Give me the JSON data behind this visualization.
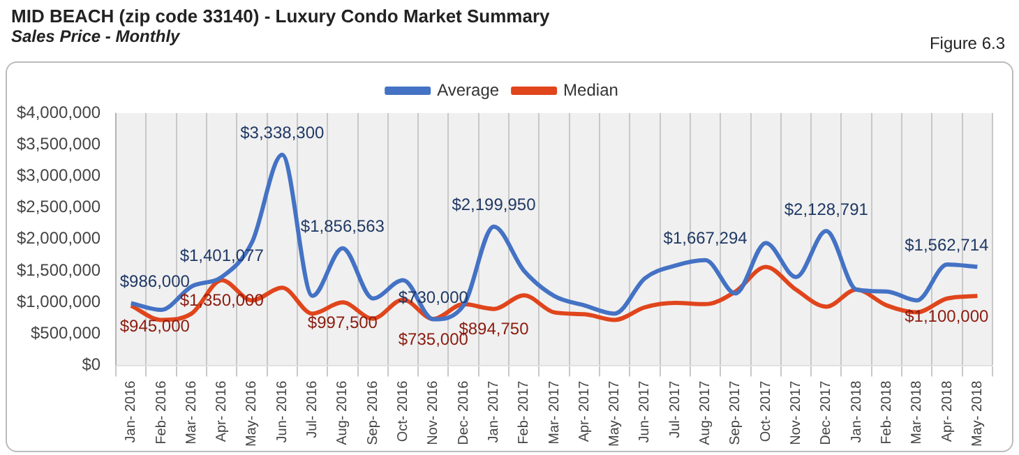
{
  "chart_data": {
    "type": "line",
    "title": "MID BEACH (zip code 33140) - Luxury Condo Market Summary",
    "subtitle": "Sales Price - Monthly",
    "annotations": [
      "Figure 6.3"
    ],
    "categories": [
      "Jan- 2016",
      "Feb- 2016",
      "Mar- 2016",
      "Apr- 2016",
      "May- 2016",
      "Jun- 2016",
      "Jul- 2016",
      "Aug- 2016",
      "Sep- 2016",
      "Oct- 2016",
      "Nov- 2016",
      "Dec- 2016",
      "Jan- 2017",
      "Feb- 2017",
      "Mar- 2017",
      "Apr- 2017",
      "May- 2017",
      "Jun- 2017",
      "Jul- 2017",
      "Aug- 2017",
      "Sep- 2017",
      "Oct- 2017",
      "Nov- 2017",
      "Dec- 2017",
      "Jan- 2018",
      "Feb- 2018",
      "Mar- 2018",
      "Apr- 2018",
      "May- 2018"
    ],
    "series": [
      {
        "name": "Average",
        "color": "#4472c4",
        "values": [
          986000,
          880000,
          1250000,
          1401077,
          1950000,
          3338300,
          1100000,
          1856563,
          1060000,
          1350000,
          730000,
          950000,
          2199950,
          1500000,
          1100000,
          950000,
          820000,
          1380000,
          1580000,
          1667294,
          1140000,
          1940000,
          1400000,
          2128791,
          1200000,
          1170000,
          1030000,
          1600000,
          1562714
        ],
        "value_labels": [
          "$986,000",
          null,
          null,
          "$1,401,077",
          null,
          "$3,338,300",
          null,
          "$1,856,563",
          null,
          null,
          "$730,000",
          null,
          "$2,199,950",
          null,
          null,
          null,
          null,
          null,
          null,
          "$1,667,294",
          null,
          null,
          null,
          "$2,128,791",
          null,
          null,
          null,
          null,
          "$1,562,714"
        ]
      },
      {
        "name": "Median",
        "color": "#e0451c",
        "values": [
          945000,
          720000,
          820000,
          1350000,
          1030000,
          1230000,
          820000,
          997500,
          740000,
          1040000,
          735000,
          970000,
          894750,
          1110000,
          840000,
          810000,
          720000,
          920000,
          990000,
          970000,
          1170000,
          1560000,
          1200000,
          930000,
          1200000,
          950000,
          840000,
          1060000,
          1100000
        ],
        "value_labels": [
          "$945,000",
          null,
          null,
          "$1,350,000",
          null,
          null,
          null,
          "$997,500",
          null,
          null,
          "$735,000",
          null,
          "$894,750",
          null,
          null,
          null,
          null,
          null,
          null,
          null,
          null,
          null,
          null,
          null,
          null,
          null,
          null,
          null,
          "$1,100,000"
        ]
      }
    ],
    "ylim": [
      0,
      4000000
    ],
    "yticks": [
      {
        "value": 0,
        "label": "$0"
      },
      {
        "value": 500000,
        "label": "$500,000"
      },
      {
        "value": 1000000,
        "label": "$1,000,000"
      },
      {
        "value": 1500000,
        "label": "$1,500,000"
      },
      {
        "value": 2000000,
        "label": "$2,000,000"
      },
      {
        "value": 2500000,
        "label": "$2,500,000"
      },
      {
        "value": 3000000,
        "label": "$3,000,000"
      },
      {
        "value": 3500000,
        "label": "$3,500,000"
      },
      {
        "value": 4000000,
        "label": "$4,000,000"
      }
    ],
    "grid": "x",
    "legend": "top",
    "marker": "none",
    "line_style": "solid"
  }
}
